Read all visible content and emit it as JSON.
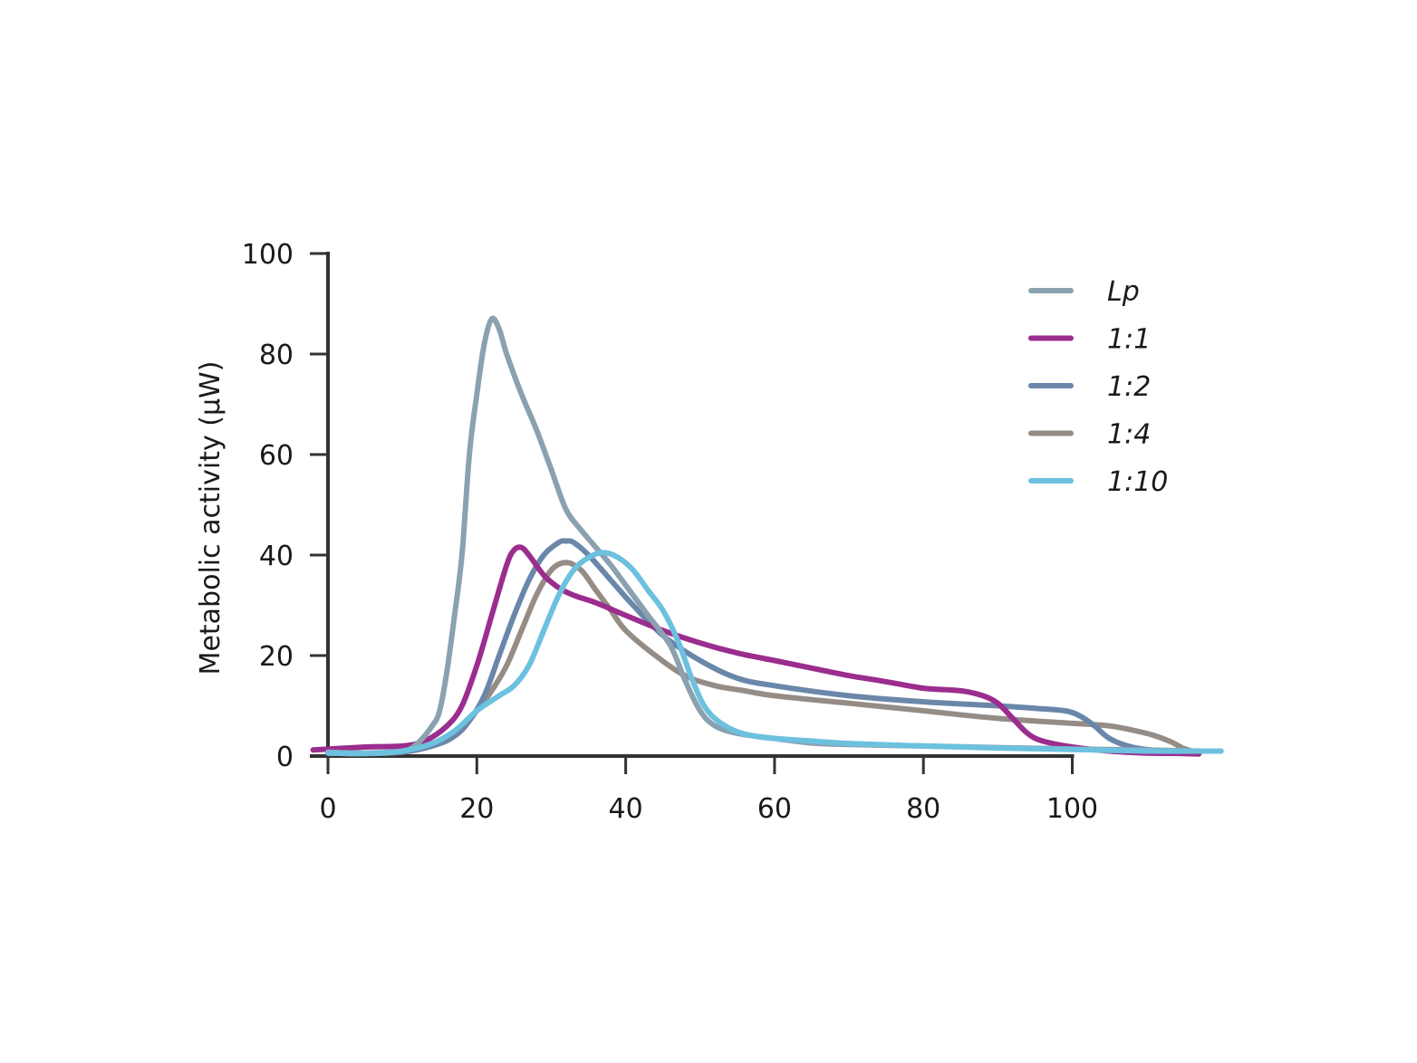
{
  "chart_data": {
    "type": "line",
    "title": "",
    "xlabel": "",
    "ylabel": "Metabolic activity (µW)",
    "xlim": [
      0,
      120
    ],
    "ylim": [
      0,
      100
    ],
    "x_ticks": [
      "0",
      "20",
      "40",
      "60",
      "80",
      "100"
    ],
    "y_ticks": [
      "0",
      "20",
      "40",
      "60",
      "80",
      "100"
    ],
    "grid": false,
    "legend_position": "top-right",
    "series": [
      {
        "name": "Lp",
        "color": "#8aa1b0",
        "points": [
          [
            0,
            0.8
          ],
          [
            5,
            0.6
          ],
          [
            10,
            1.0
          ],
          [
            12,
            2.5
          ],
          [
            14,
            6
          ],
          [
            15,
            9
          ],
          [
            16,
            17
          ],
          [
            17,
            28
          ],
          [
            18,
            40
          ],
          [
            19,
            60
          ],
          [
            20,
            72
          ],
          [
            21,
            82
          ],
          [
            22,
            87
          ],
          [
            23,
            85
          ],
          [
            24,
            80
          ],
          [
            26,
            72
          ],
          [
            28,
            65
          ],
          [
            30,
            57
          ],
          [
            32,
            49
          ],
          [
            34,
            45
          ],
          [
            36,
            41.5
          ],
          [
            38,
            38
          ],
          [
            40,
            34
          ],
          [
            43,
            28
          ],
          [
            46,
            22
          ],
          [
            48,
            15
          ],
          [
            50,
            9
          ],
          [
            52,
            6
          ],
          [
            55,
            4.5
          ],
          [
            60,
            3.5
          ],
          [
            65,
            2.6
          ],
          [
            70,
            2.3
          ],
          [
            80,
            2.0
          ],
          [
            90,
            1.7
          ],
          [
            100,
            1.4
          ],
          [
            110,
            1.2
          ],
          [
            117,
            1.0
          ]
        ]
      },
      {
        "name": "1:1",
        "color": "#9b2d8e",
        "points": [
          [
            -2,
            1.2
          ],
          [
            5,
            1.8
          ],
          [
            10,
            2.0
          ],
          [
            13,
            3
          ],
          [
            16,
            6
          ],
          [
            18,
            10
          ],
          [
            20,
            18
          ],
          [
            22,
            28
          ],
          [
            24,
            38
          ],
          [
            25,
            41
          ],
          [
            26,
            41.5
          ],
          [
            27,
            40
          ],
          [
            29,
            36
          ],
          [
            31,
            33.5
          ],
          [
            33,
            32
          ],
          [
            36,
            30.5
          ],
          [
            40,
            28
          ],
          [
            45,
            25
          ],
          [
            50,
            22.5
          ],
          [
            55,
            20.5
          ],
          [
            60,
            19
          ],
          [
            65,
            17.5
          ],
          [
            70,
            16
          ],
          [
            75,
            14.8
          ],
          [
            80,
            13.5
          ],
          [
            85,
            13
          ],
          [
            88,
            12
          ],
          [
            90,
            10.5
          ],
          [
            92,
            7.5
          ],
          [
            94,
            4.5
          ],
          [
            96,
            3
          ],
          [
            100,
            1.8
          ],
          [
            105,
            1
          ],
          [
            110,
            0.6
          ],
          [
            115,
            0.5
          ],
          [
            117,
            0.4
          ]
        ]
      },
      {
        "name": "1:2",
        "color": "#6a87aa",
        "points": [
          [
            0,
            0.6
          ],
          [
            5,
            0.5
          ],
          [
            10,
            0.8
          ],
          [
            14,
            2
          ],
          [
            17,
            4
          ],
          [
            19,
            7
          ],
          [
            21,
            12
          ],
          [
            23,
            20
          ],
          [
            25,
            28
          ],
          [
            27,
            35
          ],
          [
            29,
            40
          ],
          [
            31,
            42.5
          ],
          [
            32,
            42.8
          ],
          [
            33,
            42.5
          ],
          [
            35,
            40
          ],
          [
            38,
            35
          ],
          [
            41,
            30
          ],
          [
            45,
            24
          ],
          [
            50,
            19
          ],
          [
            55,
            15.5
          ],
          [
            60,
            14
          ],
          [
            70,
            12
          ],
          [
            80,
            10.8
          ],
          [
            90,
            10
          ],
          [
            95,
            9.5
          ],
          [
            99,
            9
          ],
          [
            101,
            8
          ],
          [
            103,
            6
          ],
          [
            105,
            3.5
          ],
          [
            108,
            1.8
          ],
          [
            112,
            1.0
          ],
          [
            116,
            0.8
          ]
        ]
      },
      {
        "name": "1:4",
        "color": "#958c86",
        "points": [
          [
            0,
            0.6
          ],
          [
            5,
            0.5
          ],
          [
            10,
            0.8
          ],
          [
            14,
            2
          ],
          [
            17,
            4
          ],
          [
            20,
            9
          ],
          [
            22,
            13
          ],
          [
            24,
            18
          ],
          [
            26,
            25
          ],
          [
            28,
            32
          ],
          [
            30,
            37
          ],
          [
            32,
            38.5
          ],
          [
            34,
            37
          ],
          [
            36,
            33
          ],
          [
            38,
            29
          ],
          [
            40,
            25
          ],
          [
            44,
            20
          ],
          [
            48,
            16
          ],
          [
            52,
            14
          ],
          [
            56,
            13
          ],
          [
            60,
            12
          ],
          [
            70,
            10.5
          ],
          [
            80,
            9
          ],
          [
            90,
            7.5
          ],
          [
            100,
            6.5
          ],
          [
            105,
            6
          ],
          [
            110,
            4.5
          ],
          [
            113,
            3
          ],
          [
            115,
            1.5
          ],
          [
            117,
            0.6
          ]
        ]
      },
      {
        "name": "1:10",
        "color": "#6cc1df",
        "points": [
          [
            0,
            0.6
          ],
          [
            5,
            0.5
          ],
          [
            10,
            1.0
          ],
          [
            14,
            2.5
          ],
          [
            17,
            5
          ],
          [
            20,
            9
          ],
          [
            23,
            12
          ],
          [
            25,
            14
          ],
          [
            27,
            18
          ],
          [
            29,
            25
          ],
          [
            31,
            32
          ],
          [
            33,
            37
          ],
          [
            35,
            39.5
          ],
          [
            37,
            40.5
          ],
          [
            39,
            39.5
          ],
          [
            41,
            37
          ],
          [
            43,
            33
          ],
          [
            45,
            29
          ],
          [
            47,
            23
          ],
          [
            49,
            15
          ],
          [
            51,
            9
          ],
          [
            54,
            5.5
          ],
          [
            58,
            3.8
          ],
          [
            65,
            3
          ],
          [
            70,
            2.5
          ],
          [
            80,
            2.0
          ],
          [
            90,
            1.6
          ],
          [
            100,
            1.3
          ],
          [
            110,
            1.0
          ],
          [
            120,
            1.0
          ]
        ]
      }
    ]
  }
}
